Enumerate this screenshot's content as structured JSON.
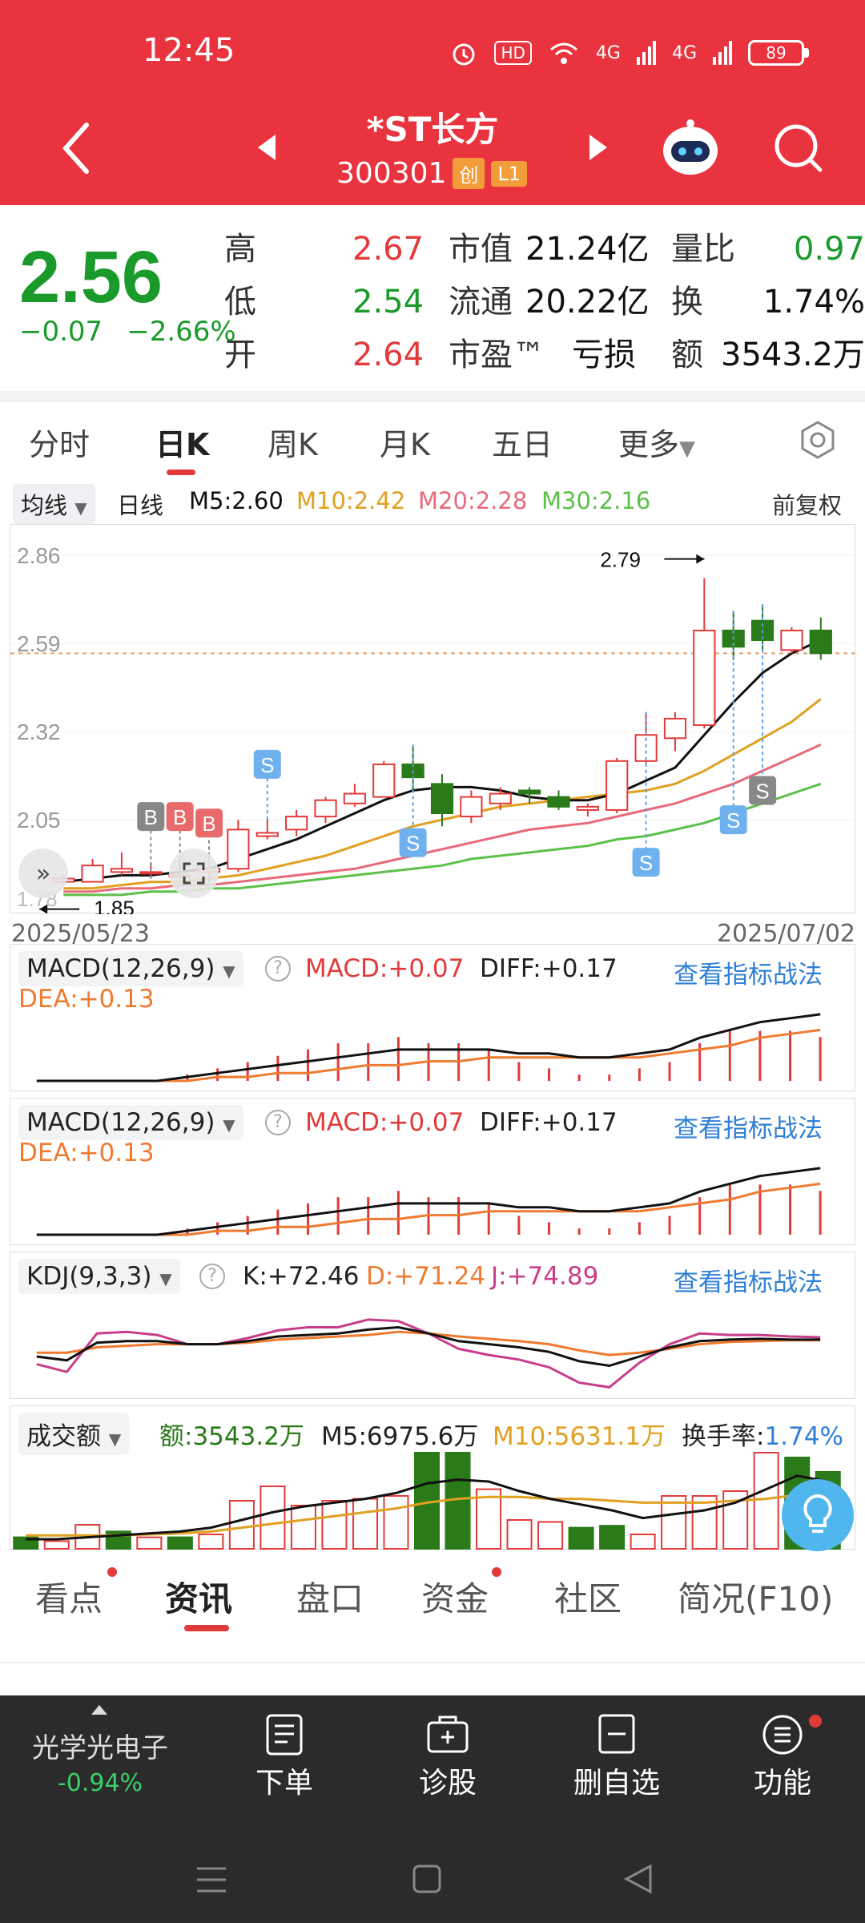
{
  "status": {
    "time": "12:45",
    "hd": "HD",
    "net1": "4G",
    "net2": "4G",
    "battery": "89"
  },
  "nav": {
    "title": "*ST长方",
    "code": "300301",
    "tag1": "创",
    "tag2": "L1"
  },
  "quote": {
    "price": "2.56",
    "change": "−0.07",
    "change_pct": "−2.66%",
    "high_label": "高",
    "high": "2.67",
    "low_label": "低",
    "low": "2.54",
    "open_label": "开",
    "open": "2.64",
    "mcap_label": "市值",
    "mcap": "21.24亿",
    "float_label": "流通",
    "float": "20.22亿",
    "pe_label": "市盈™",
    "pe": "亏损",
    "vr_label": "量比",
    "vr": "0.97",
    "turn_label": "换",
    "turn": "1.74%",
    "amt_label": "额",
    "amt": "3543.2万"
  },
  "tabs": [
    "分时",
    "日K",
    "周K",
    "月K",
    "五日",
    "更多"
  ],
  "ma_legend": {
    "type": "均线",
    "period": "日线",
    "m5": "M5:2.60",
    "m10": "M10:2.42",
    "m20": "M20:2.28",
    "m30": "M30:2.16",
    "adj": "前复权"
  },
  "colors": {
    "up": "#e23a3a",
    "down": "#2a7a1a",
    "ma5": "#111111",
    "ma10": "#e0a020",
    "ma20": "#e86a7a",
    "ma30": "#5cc04a"
  },
  "chart_data": {
    "type": "candlestick",
    "y_ticks": [
      "2.86",
      "2.59",
      "2.32",
      "2.05"
    ],
    "ylim": [
      1.8,
      2.88
    ],
    "annotations": {
      "high": "2.79",
      "low": "1.85",
      "ylabel_low": "1.78"
    },
    "date_start": "2025/05/23",
    "date_end": "2025/07/02",
    "candles": [
      {
        "o": 1.86,
        "h": 1.88,
        "l": 1.85,
        "c": 1.87
      },
      {
        "o": 1.86,
        "h": 1.93,
        "l": 1.86,
        "c": 1.91
      },
      {
        "o": 1.89,
        "h": 1.95,
        "l": 1.88,
        "c": 1.9
      },
      {
        "o": 1.89,
        "h": 1.92,
        "l": 1.87,
        "c": 1.89
      },
      {
        "o": 1.88,
        "h": 1.93,
        "l": 1.87,
        "c": 1.88
      },
      {
        "o": 1.89,
        "h": 1.95,
        "l": 1.86,
        "c": 1.9
      },
      {
        "o": 1.9,
        "h": 2.05,
        "l": 1.89,
        "c": 2.02
      },
      {
        "o": 2.0,
        "h": 2.05,
        "l": 1.99,
        "c": 2.01
      },
      {
        "o": 2.02,
        "h": 2.08,
        "l": 2.0,
        "c": 2.06
      },
      {
        "o": 2.06,
        "h": 2.12,
        "l": 2.04,
        "c": 2.11
      },
      {
        "o": 2.1,
        "h": 2.16,
        "l": 2.09,
        "c": 2.13
      },
      {
        "o": 2.12,
        "h": 2.23,
        "l": 2.12,
        "c": 2.22
      },
      {
        "o": 2.22,
        "h": 2.28,
        "l": 2.14,
        "c": 2.18
      },
      {
        "o": 2.16,
        "h": 2.19,
        "l": 2.03,
        "c": 2.07
      },
      {
        "o": 2.06,
        "h": 2.14,
        "l": 2.04,
        "c": 2.12
      },
      {
        "o": 2.1,
        "h": 2.15,
        "l": 2.08,
        "c": 2.13
      },
      {
        "o": 2.14,
        "h": 2.15,
        "l": 2.1,
        "c": 2.13
      },
      {
        "o": 2.12,
        "h": 2.14,
        "l": 2.08,
        "c": 2.09
      },
      {
        "o": 2.08,
        "h": 2.1,
        "l": 2.06,
        "c": 2.09
      },
      {
        "o": 2.08,
        "h": 2.24,
        "l": 2.07,
        "c": 2.23
      },
      {
        "o": 2.23,
        "h": 2.38,
        "l": 2.22,
        "c": 2.31
      },
      {
        "o": 2.3,
        "h": 2.38,
        "l": 2.26,
        "c": 2.36
      },
      {
        "o": 2.34,
        "h": 2.79,
        "l": 2.33,
        "c": 2.63
      },
      {
        "o": 2.63,
        "h": 2.69,
        "l": 2.54,
        "c": 2.58
      },
      {
        "o": 2.66,
        "h": 2.71,
        "l": 2.57,
        "c": 2.6
      },
      {
        "o": 2.57,
        "h": 2.64,
        "l": 2.56,
        "c": 2.63
      },
      {
        "o": 2.63,
        "h": 2.67,
        "l": 2.54,
        "c": 2.56
      }
    ],
    "ma5": [
      1.86,
      1.87,
      1.88,
      1.88,
      1.89,
      1.9,
      1.93,
      1.96,
      1.99,
      2.03,
      2.07,
      2.11,
      2.14,
      2.15,
      2.15,
      2.14,
      2.12,
      2.11,
      2.11,
      2.13,
      2.17,
      2.21,
      2.31,
      2.41,
      2.5,
      2.56,
      2.6
    ],
    "ma10": [
      1.84,
      1.84,
      1.85,
      1.86,
      1.86,
      1.87,
      1.88,
      1.9,
      1.92,
      1.94,
      1.97,
      2.0,
      2.03,
      2.05,
      2.07,
      2.09,
      2.1,
      2.11,
      2.12,
      2.13,
      2.14,
      2.16,
      2.2,
      2.25,
      2.3,
      2.35,
      2.42
    ],
    "ma20": [
      1.83,
      1.83,
      1.84,
      1.84,
      1.85,
      1.85,
      1.86,
      1.87,
      1.88,
      1.89,
      1.9,
      1.92,
      1.94,
      1.96,
      1.98,
      2.0,
      2.02,
      2.03,
      2.04,
      2.06,
      2.08,
      2.1,
      2.13,
      2.16,
      2.2,
      2.24,
      2.28
    ],
    "ma30": [
      1.82,
      1.82,
      1.82,
      1.83,
      1.83,
      1.84,
      1.84,
      1.85,
      1.86,
      1.87,
      1.88,
      1.89,
      1.9,
      1.91,
      1.93,
      1.94,
      1.95,
      1.96,
      1.97,
      1.99,
      2.0,
      2.02,
      2.04,
      2.07,
      2.1,
      2.13,
      2.16
    ],
    "signals": [
      {
        "i": 3,
        "t": "B",
        "v": 2.06
      },
      {
        "i": 4,
        "t": "B",
        "v": 2.06
      },
      {
        "i": 5,
        "t": "B",
        "v": 2.04
      },
      {
        "i": 7,
        "t": "S",
        "v": 2.22
      },
      {
        "i": 12,
        "t": "S",
        "v": 1.98
      },
      {
        "i": 20,
        "t": "S",
        "v": 1.92
      },
      {
        "i": 23,
        "t": "S",
        "v": 2.05
      },
      {
        "i": 24,
        "t": "S",
        "v": 2.14
      }
    ]
  },
  "macd1": {
    "selector": "MACD(12,26,9)",
    "macd": "MACD:+0.07",
    "diff": "DIFF:+0.17",
    "dea": "DEA:+0.13",
    "link": "查看指标战法",
    "diff_vals": [
      0.0,
      0.0,
      0.0,
      0.0,
      0.0,
      0.01,
      0.02,
      0.03,
      0.04,
      0.05,
      0.06,
      0.07,
      0.08,
      0.08,
      0.08,
      0.08,
      0.07,
      0.07,
      0.06,
      0.06,
      0.07,
      0.08,
      0.11,
      0.13,
      0.15,
      0.16,
      0.17
    ],
    "dea_vals": [
      0.0,
      0.0,
      0.0,
      0.0,
      0.0,
      0.0,
      0.01,
      0.01,
      0.02,
      0.02,
      0.03,
      0.04,
      0.04,
      0.05,
      0.05,
      0.06,
      0.06,
      0.06,
      0.06,
      0.06,
      0.06,
      0.07,
      0.08,
      0.09,
      0.11,
      0.12,
      0.13
    ],
    "hist": [
      0.0,
      0.0,
      0.0,
      0.0,
      0.0,
      0.01,
      0.02,
      0.03,
      0.04,
      0.05,
      0.06,
      0.06,
      0.07,
      0.06,
      0.06,
      0.05,
      0.03,
      0.02,
      0.01,
      0.01,
      0.02,
      0.03,
      0.06,
      0.08,
      0.08,
      0.08,
      0.07
    ]
  },
  "macd2": {
    "selector": "MACD(12,26,9)",
    "macd": "MACD:+0.07",
    "diff": "DIFF:+0.17",
    "dea": "DEA:+0.13",
    "link": "查看指标战法"
  },
  "kdj": {
    "selector": "KDJ(9,3,3)",
    "k": "K:+72.46",
    "d": "D:+71.24",
    "j": "J:+74.89",
    "link": "查看指标战法",
    "k_vals": [
      50,
      45,
      68,
      70,
      70,
      66,
      66,
      70,
      76,
      78,
      80,
      85,
      88,
      80,
      70,
      66,
      62,
      56,
      44,
      38,
      50,
      62,
      70,
      72,
      73,
      72,
      72
    ],
    "d_vals": [
      55,
      55,
      62,
      64,
      66,
      66,
      66,
      68,
      72,
      74,
      76,
      78,
      82,
      80,
      76,
      73,
      70,
      66,
      58,
      52,
      55,
      60,
      66,
      69,
      70,
      71,
      71
    ],
    "j_vals": [
      40,
      30,
      80,
      82,
      78,
      66,
      66,
      74,
      84,
      88,
      88,
      98,
      96,
      80,
      60,
      52,
      46,
      36,
      16,
      10,
      42,
      66,
      80,
      78,
      78,
      76,
      75
    ]
  },
  "volume": {
    "selector": "成交额",
    "amt": "额:3543.2万",
    "m5": "M5:6975.6万",
    "m10": "M10:5631.1万",
    "turnover_label": "换手率:",
    "turnover": "1.74%",
    "vals": [
      12,
      8,
      25,
      18,
      12,
      12,
      15,
      50,
      65,
      45,
      50,
      52,
      55,
      100,
      100,
      62,
      30,
      28,
      22,
      24,
      15,
      55,
      55,
      60,
      100,
      95,
      80
    ],
    "updown": [
      "d",
      "u",
      "u",
      "d",
      "u",
      "d",
      "u",
      "u",
      "u",
      "u",
      "u",
      "u",
      "u",
      "d",
      "d",
      "u",
      "u",
      "u",
      "d",
      "d",
      "u",
      "u",
      "u",
      "u",
      "u",
      "d",
      "d"
    ]
  },
  "bottom_tabs": [
    "看点",
    "资讯",
    "盘口",
    "资金",
    "社区",
    "简况(F10)"
  ],
  "dock": {
    "sector": "光学光电子",
    "sector_chg": "-0.94%",
    "order": "下单",
    "diagnose": "诊股",
    "del": "删自选",
    "func": "功能"
  }
}
